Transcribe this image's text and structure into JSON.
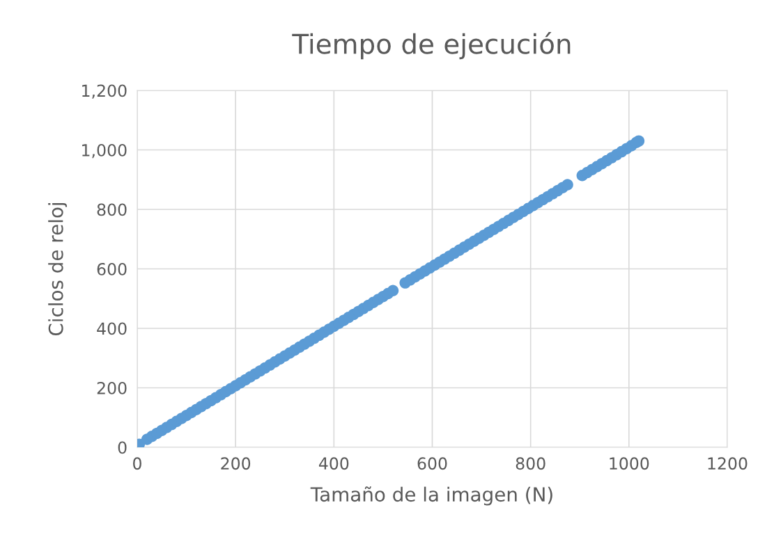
{
  "chart_data": {
    "type": "scatter",
    "title": "Tiempo de ejecución",
    "xlabel": "Tamaño de la imagen (N)",
    "ylabel": "Ciclos de reloj",
    "x": [
      4,
      20,
      30,
      40,
      50,
      60,
      70,
      80,
      90,
      100,
      110,
      120,
      130,
      140,
      150,
      160,
      170,
      180,
      190,
      200,
      210,
      220,
      230,
      240,
      250,
      260,
      270,
      280,
      290,
      300,
      310,
      320,
      330,
      340,
      350,
      360,
      370,
      380,
      390,
      400,
      410,
      420,
      430,
      440,
      450,
      460,
      470,
      480,
      490,
      500,
      510,
      520,
      545,
      555,
      565,
      575,
      585,
      595,
      605,
      615,
      625,
      635,
      645,
      655,
      665,
      675,
      685,
      695,
      705,
      715,
      725,
      735,
      745,
      755,
      765,
      775,
      785,
      795,
      805,
      815,
      825,
      835,
      845,
      855,
      865,
      875,
      905,
      915,
      925,
      935,
      945,
      955,
      965,
      975,
      985,
      995,
      1005,
      1015,
      1020
    ],
    "series": [
      {
        "color": "#5b9bd5",
        "values": [
          10,
          27,
          37,
          47,
          57,
          67,
          77,
          87,
          97,
          107,
          117,
          127,
          137,
          147,
          157,
          167,
          177,
          187,
          197,
          207,
          217,
          227,
          237,
          247,
          257,
          267,
          277,
          287,
          297,
          307,
          317,
          327,
          337,
          347,
          357,
          367,
          377,
          387,
          397,
          407,
          417,
          427,
          437,
          447,
          457,
          467,
          477,
          487,
          497,
          507,
          517,
          527,
          553,
          563,
          573,
          583,
          593,
          603,
          613,
          623,
          633,
          643,
          653,
          663,
          673,
          683,
          693,
          703,
          713,
          723,
          733,
          743,
          753,
          763,
          773,
          783,
          793,
          803,
          813,
          823,
          833,
          843,
          853,
          863,
          873,
          883,
          914,
          924,
          934,
          944,
          954,
          964,
          974,
          984,
          994,
          1004,
          1014,
          1025,
          1030
        ]
      }
    ],
    "xlim": [
      0,
      1200
    ],
    "xticks": [
      0,
      200,
      400,
      600,
      800,
      1000,
      1200
    ],
    "ylim": [
      0,
      1200
    ],
    "yticks": [
      0,
      200,
      400,
      600,
      800,
      {
        "value": 1000,
        "label": "1,000"
      },
      {
        "value": 1200,
        "label": "1,200"
      }
    ],
    "grid": true,
    "marker": "circle"
  }
}
